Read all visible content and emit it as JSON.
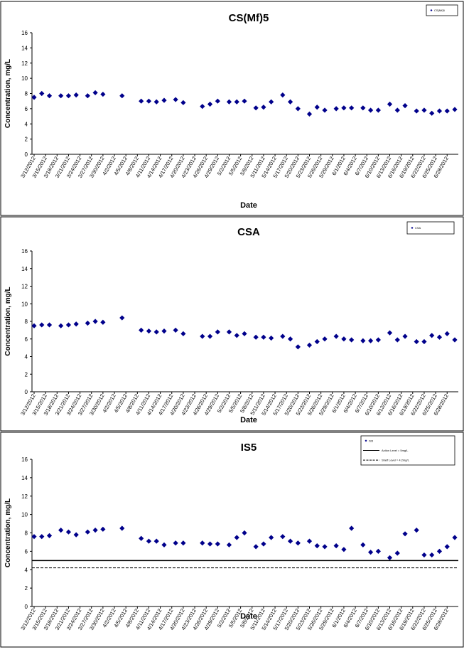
{
  "chart_data": [
    {
      "type": "scatter",
      "title": "CS(Mf)5",
      "xlabel": "Date",
      "ylabel": "Concentration, mg/L",
      "ylim": [
        0,
        16
      ],
      "yticks": [
        "0",
        "2",
        "4",
        "6",
        "8",
        "10",
        "12",
        "14",
        "16"
      ],
      "xticks": [
        "3/12/2012",
        "3/15/2012",
        "3/18/2012",
        "3/21/2012",
        "3/24/2012",
        "3/27/2012",
        "3/30/2012",
        "4/2/2012",
        "4/5/2012",
        "4/8/2012",
        "4/11/2012",
        "4/14/2012",
        "4/17/2012",
        "4/20/2012",
        "4/23/2012",
        "4/26/2012",
        "4/29/2012",
        "5/2/2012",
        "5/5/2012",
        "5/8/2012",
        "5/11/2012",
        "5/14/2012",
        "5/17/2012",
        "5/20/2012",
        "5/23/2012",
        "5/26/2012",
        "5/29/2012",
        "6/1/2012",
        "6/4/2012",
        "6/7/2012",
        "6/10/2012",
        "6/13/2012",
        "6/16/2012",
        "6/19/2012",
        "6/22/2012",
        "6/25/2012",
        "6/28/2012"
      ],
      "x_range": [
        "3/12/2012",
        "6/30/2012"
      ],
      "legend": {
        "entries": [
          "CS(Mf)5"
        ],
        "position": "top-right"
      },
      "grid": false,
      "marker_color": "#00008B",
      "series": [
        {
          "name": "CS(Mf)5",
          "x": [
            "3/12/2012",
            "3/14/2012",
            "3/16/2012",
            "3/19/2012",
            "3/21/2012",
            "3/23/2012",
            "3/26/2012",
            "3/28/2012",
            "3/30/2012",
            "4/4/2012",
            "4/9/2012",
            "4/11/2012",
            "4/13/2012",
            "4/15/2012",
            "4/18/2012",
            "4/20/2012",
            "4/25/2012",
            "4/27/2012",
            "4/29/2012",
            "5/2/2012",
            "5/4/2012",
            "5/6/2012",
            "5/9/2012",
            "5/11/2012",
            "5/13/2012",
            "5/16/2012",
            "5/18/2012",
            "5/20/2012",
            "5/23/2012",
            "5/25/2012",
            "5/27/2012",
            "5/30/2012",
            "6/1/2012",
            "6/3/2012",
            "6/6/2012",
            "6/8/2012",
            "6/10/2012",
            "6/13/2012",
            "6/15/2012",
            "6/17/2012",
            "6/20/2012",
            "6/22/2012",
            "6/24/2012",
            "6/26/2012",
            "6/28/2012",
            "6/30/2012"
          ],
          "y": [
            7.5,
            8.0,
            7.7,
            7.7,
            7.7,
            7.8,
            7.7,
            8.1,
            7.9,
            7.7,
            7.0,
            7.0,
            6.9,
            7.1,
            7.2,
            6.8,
            6.3,
            6.6,
            7.0,
            6.9,
            6.9,
            7.0,
            6.1,
            6.2,
            6.9,
            7.8,
            6.9,
            6.0,
            5.3,
            6.2,
            5.8,
            6.0,
            6.1,
            6.1,
            6.1,
            5.8,
            5.8,
            6.6,
            5.8,
            6.4,
            5.7,
            5.8,
            5.4,
            5.7,
            5.7,
            5.9
          ]
        }
      ]
    },
    {
      "type": "scatter",
      "title": "CSA",
      "xlabel": "Date",
      "ylabel": "Concentration, mg/L",
      "ylim": [
        0,
        16
      ],
      "yticks": [
        "0",
        "2",
        "4",
        "6",
        "8",
        "10",
        "12",
        "14",
        "16"
      ],
      "xticks": [
        "3/12/2012",
        "3/15/2012",
        "3/18/2012",
        "3/21/2012",
        "3/24/2012",
        "3/27/2012",
        "3/30/2012",
        "4/2/2012",
        "4/5/2012",
        "4/8/2012",
        "4/11/2012",
        "4/14/2012",
        "4/17/2012",
        "4/20/2012",
        "4/23/2012",
        "4/26/2012",
        "4/29/2012",
        "5/2/2012",
        "5/5/2012",
        "5/8/2012",
        "5/11/2012",
        "5/14/2012",
        "5/17/2012",
        "5/20/2012",
        "5/23/2012",
        "5/26/2012",
        "5/29/2012",
        "6/1/2012",
        "6/4/2012",
        "6/7/2012",
        "6/10/2012",
        "6/13/2012",
        "6/16/2012",
        "6/19/2012",
        "6/22/2012",
        "6/25/2012",
        "6/28/2012"
      ],
      "x_range": [
        "3/12/2012",
        "6/30/2012"
      ],
      "legend": {
        "entries": [
          "CSA"
        ],
        "position": "top-right"
      },
      "grid": false,
      "marker_color": "#00008B",
      "series": [
        {
          "name": "CSA",
          "x": [
            "3/12/2012",
            "3/14/2012",
            "3/16/2012",
            "3/19/2012",
            "3/21/2012",
            "3/23/2012",
            "3/26/2012",
            "3/28/2012",
            "3/30/2012",
            "4/4/2012",
            "4/9/2012",
            "4/11/2012",
            "4/13/2012",
            "4/15/2012",
            "4/18/2012",
            "4/20/2012",
            "4/25/2012",
            "4/27/2012",
            "4/29/2012",
            "5/2/2012",
            "5/4/2012",
            "5/6/2012",
            "5/9/2012",
            "5/11/2012",
            "5/13/2012",
            "5/16/2012",
            "5/18/2012",
            "5/20/2012",
            "5/23/2012",
            "5/25/2012",
            "5/27/2012",
            "5/30/2012",
            "6/1/2012",
            "6/3/2012",
            "6/6/2012",
            "6/8/2012",
            "6/10/2012",
            "6/13/2012",
            "6/15/2012",
            "6/17/2012",
            "6/20/2012",
            "6/22/2012",
            "6/24/2012",
            "6/26/2012",
            "6/28/2012",
            "6/30/2012"
          ],
          "y": [
            7.5,
            7.6,
            7.6,
            7.5,
            7.6,
            7.7,
            7.8,
            8.0,
            7.9,
            8.4,
            7.0,
            6.9,
            6.8,
            6.9,
            7.0,
            6.6,
            6.3,
            6.3,
            6.8,
            6.8,
            6.4,
            6.6,
            6.2,
            6.2,
            6.1,
            6.3,
            6.0,
            5.1,
            5.3,
            5.7,
            6.0,
            6.3,
            6.0,
            5.9,
            5.8,
            5.8,
            5.9,
            6.7,
            5.9,
            6.3,
            5.7,
            5.7,
            6.4,
            6.2,
            6.6,
            5.9
          ]
        }
      ]
    },
    {
      "type": "scatter",
      "title": "IS5",
      "xlabel": "Date",
      "ylabel": "Concentration, mg/L",
      "ylim": [
        0,
        16
      ],
      "yticks": [
        "0",
        "2",
        "4",
        "6",
        "8",
        "10",
        "12",
        "14",
        "16"
      ],
      "xticks": [
        "3/12/2012",
        "3/15/2012",
        "3/18/2012",
        "3/21/2012",
        "3/24/2012",
        "3/27/2012",
        "3/30/2012",
        "4/2/2012",
        "4/5/2012",
        "4/8/2012",
        "4/11/2012",
        "4/14/2012",
        "4/17/2012",
        "4/20/2012",
        "4/23/2012",
        "4/26/2012",
        "4/29/2012",
        "5/2/2012",
        "5/5/2012",
        "5/8/2012",
        "5/11/2012",
        "5/14/2012",
        "5/17/2012",
        "5/20/2012",
        "5/23/2012",
        "5/26/2012",
        "5/29/2012",
        "6/1/2012",
        "6/4/2012",
        "6/7/2012",
        "6/10/2012",
        "6/13/2012",
        "6/16/2012",
        "6/19/2012",
        "6/22/2012",
        "6/25/2012",
        "6/28/2012"
      ],
      "x_range": [
        "3/12/2012",
        "6/30/2012"
      ],
      "legend": {
        "entries": [
          "IS5",
          "Action Level = 5mg/L",
          "Shelf Level = 4.2mg/L"
        ],
        "position": "top-right"
      },
      "grid": false,
      "marker_color": "#00008B",
      "reference_lines": [
        {
          "name": "Action Level = 5mg/L",
          "y": 5.0,
          "style": "solid"
        },
        {
          "name": "Shelf Level = 4.2mg/L",
          "y": 4.2,
          "style": "dashed"
        }
      ],
      "series": [
        {
          "name": "IS5",
          "x": [
            "3/12/2012",
            "3/14/2012",
            "3/16/2012",
            "3/19/2012",
            "3/21/2012",
            "3/23/2012",
            "3/26/2012",
            "3/28/2012",
            "3/30/2012",
            "4/4/2012",
            "4/9/2012",
            "4/11/2012",
            "4/13/2012",
            "4/15/2012",
            "4/18/2012",
            "4/20/2012",
            "4/25/2012",
            "4/27/2012",
            "4/29/2012",
            "5/2/2012",
            "5/4/2012",
            "5/6/2012",
            "5/9/2012",
            "5/11/2012",
            "5/13/2012",
            "5/16/2012",
            "5/18/2012",
            "5/20/2012",
            "5/23/2012",
            "5/25/2012",
            "5/27/2012",
            "5/30/2012",
            "6/1/2012",
            "6/3/2012",
            "6/6/2012",
            "6/8/2012",
            "6/10/2012",
            "6/13/2012",
            "6/15/2012",
            "6/17/2012",
            "6/20/2012",
            "6/22/2012",
            "6/24/2012",
            "6/26/2012",
            "6/28/2012",
            "6/30/2012"
          ],
          "y": [
            7.6,
            7.6,
            7.7,
            8.3,
            8.1,
            7.8,
            8.1,
            8.3,
            8.4,
            8.5,
            7.4,
            7.1,
            7.1,
            6.7,
            6.9,
            6.9,
            6.9,
            6.8,
            6.8,
            6.7,
            7.5,
            8.0,
            6.5,
            6.8,
            7.5,
            7.6,
            7.1,
            6.9,
            7.1,
            6.6,
            6.5,
            6.6,
            6.2,
            8.5,
            6.7,
            5.9,
            6.0,
            5.3,
            5.8,
            7.9,
            8.3,
            5.6,
            5.6,
            6.0,
            6.5,
            7.5
          ]
        }
      ]
    }
  ]
}
